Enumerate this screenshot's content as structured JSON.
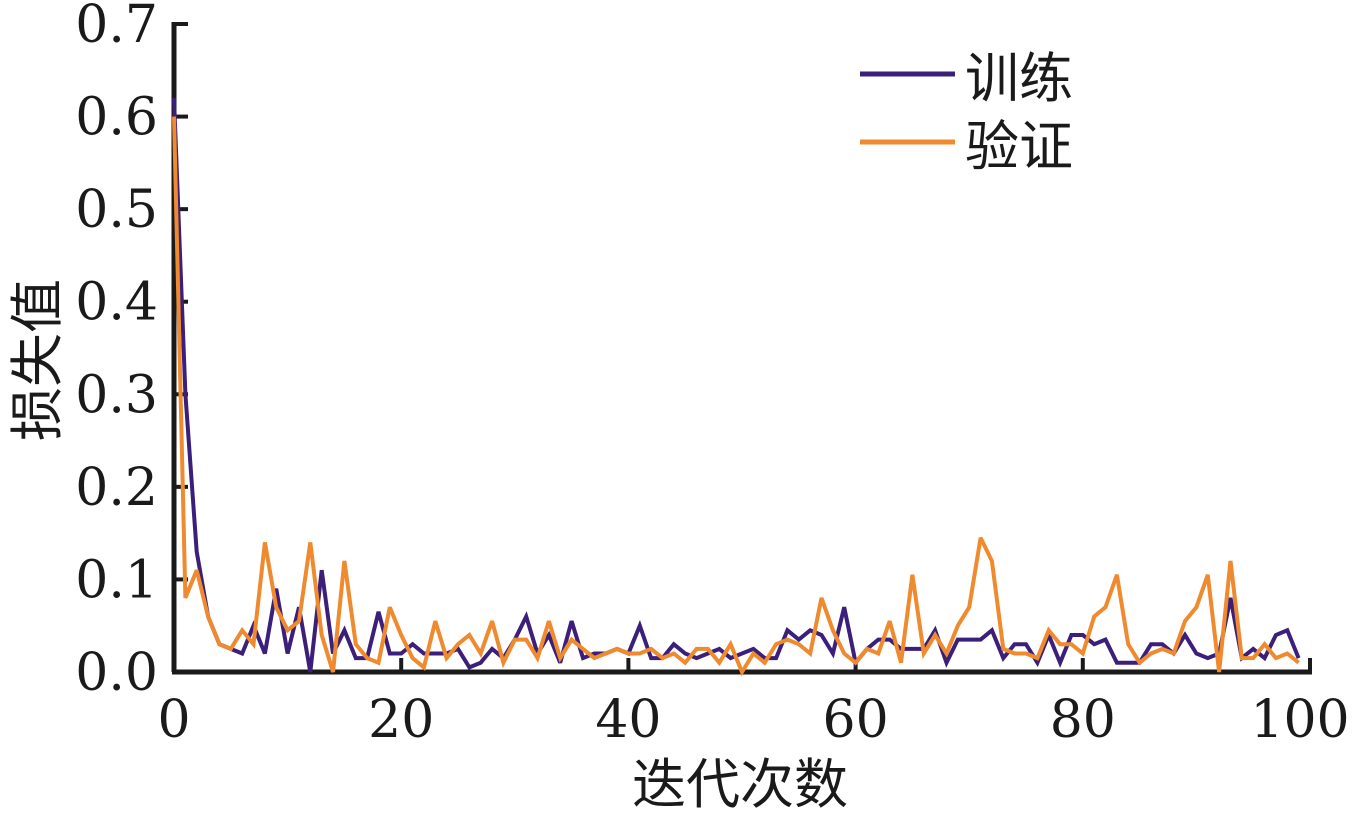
{
  "chart_data": {
    "type": "line",
    "xlabel": "迭代次数",
    "ylabel": "损失值",
    "xlim": [
      0,
      100
    ],
    "ylim": [
      0,
      0.7
    ],
    "xticks": [
      "0",
      "20",
      "40",
      "60",
      "80",
      "100"
    ],
    "yticks": [
      "0.0",
      "0.1",
      "0.2",
      "0.3",
      "0.4",
      "0.5",
      "0.6",
      "0.7"
    ],
    "grid": false,
    "legend": "top-right",
    "series": [
      {
        "name": "训练",
        "color": "#3b1f7a",
        "x": [
          0,
          1,
          2,
          3,
          4,
          5,
          6,
          7,
          8,
          9,
          10,
          11,
          12,
          13,
          14,
          15,
          16,
          17,
          18,
          19,
          20,
          21,
          22,
          23,
          24,
          25,
          26,
          27,
          28,
          29,
          30,
          31,
          32,
          33,
          34,
          35,
          36,
          37,
          38,
          39,
          40,
          41,
          42,
          43,
          44,
          45,
          46,
          47,
          48,
          49,
          50,
          51,
          52,
          53,
          54,
          55,
          56,
          57,
          58,
          59,
          60,
          61,
          62,
          63,
          64,
          65,
          66,
          67,
          68,
          69,
          70,
          71,
          72,
          73,
          74,
          75,
          76,
          77,
          78,
          79,
          80,
          81,
          82,
          83,
          84,
          85,
          86,
          87,
          88,
          89,
          90,
          91,
          92,
          93,
          94,
          95,
          96,
          97,
          98,
          99
        ],
        "values": [
          0.62,
          0.3,
          0.13,
          0.06,
          0.03,
          0.025,
          0.02,
          0.05,
          0.02,
          0.09,
          0.02,
          0.07,
          0.0,
          0.11,
          0.02,
          0.045,
          0.015,
          0.015,
          0.065,
          0.02,
          0.02,
          0.03,
          0.02,
          0.02,
          0.02,
          0.025,
          0.005,
          0.01,
          0.025,
          0.015,
          0.035,
          0.06,
          0.02,
          0.04,
          0.01,
          0.055,
          0.015,
          0.02,
          0.02,
          0.025,
          0.02,
          0.05,
          0.015,
          0.015,
          0.03,
          0.02,
          0.015,
          0.02,
          0.025,
          0.015,
          0.02,
          0.025,
          0.015,
          0.015,
          0.045,
          0.035,
          0.045,
          0.04,
          0.02,
          0.07,
          0.01,
          0.025,
          0.035,
          0.035,
          0.025,
          0.025,
          0.025,
          0.045,
          0.01,
          0.035,
          0.035,
          0.035,
          0.045,
          0.015,
          0.03,
          0.03,
          0.01,
          0.04,
          0.01,
          0.04,
          0.04,
          0.03,
          0.035,
          0.01,
          0.01,
          0.01,
          0.03,
          0.03,
          0.02,
          0.04,
          0.02,
          0.015,
          0.02,
          0.08,
          0.015,
          0.025,
          0.015,
          0.04,
          0.045,
          0.015
        ]
      },
      {
        "name": "验证",
        "color": "#ef8a2e",
        "x": [
          0,
          1,
          2,
          3,
          4,
          5,
          6,
          7,
          8,
          9,
          10,
          11,
          12,
          13,
          14,
          15,
          16,
          17,
          18,
          19,
          20,
          21,
          22,
          23,
          24,
          25,
          26,
          27,
          28,
          29,
          30,
          31,
          32,
          33,
          34,
          35,
          36,
          37,
          38,
          39,
          40,
          41,
          42,
          43,
          44,
          45,
          46,
          47,
          48,
          49,
          50,
          51,
          52,
          53,
          54,
          55,
          56,
          57,
          58,
          59,
          60,
          61,
          62,
          63,
          64,
          65,
          66,
          67,
          68,
          69,
          70,
          71,
          72,
          73,
          74,
          75,
          76,
          77,
          78,
          79,
          80,
          81,
          82,
          83,
          84,
          85,
          86,
          87,
          88,
          89,
          90,
          91,
          92,
          93,
          94,
          95,
          96,
          97,
          98,
          99
        ],
        "values": [
          0.6,
          0.08,
          0.11,
          0.06,
          0.03,
          0.025,
          0.045,
          0.03,
          0.14,
          0.07,
          0.045,
          0.055,
          0.14,
          0.04,
          0.0,
          0.12,
          0.03,
          0.015,
          0.01,
          0.07,
          0.04,
          0.015,
          0.005,
          0.055,
          0.015,
          0.03,
          0.04,
          0.02,
          0.055,
          0.01,
          0.035,
          0.035,
          0.015,
          0.055,
          0.015,
          0.035,
          0.025,
          0.015,
          0.02,
          0.025,
          0.02,
          0.02,
          0.025,
          0.015,
          0.02,
          0.01,
          0.025,
          0.025,
          0.01,
          0.03,
          0.0,
          0.02,
          0.01,
          0.03,
          0.035,
          0.03,
          0.02,
          0.08,
          0.045,
          0.02,
          0.01,
          0.025,
          0.02,
          0.055,
          0.01,
          0.105,
          0.02,
          0.04,
          0.02,
          0.05,
          0.07,
          0.145,
          0.12,
          0.025,
          0.02,
          0.02,
          0.015,
          0.045,
          0.03,
          0.03,
          0.02,
          0.06,
          0.07,
          0.105,
          0.03,
          0.01,
          0.02,
          0.025,
          0.02,
          0.055,
          0.07,
          0.105,
          0.0,
          0.12,
          0.015,
          0.015,
          0.03,
          0.015,
          0.02,
          0.01
        ]
      }
    ]
  }
}
